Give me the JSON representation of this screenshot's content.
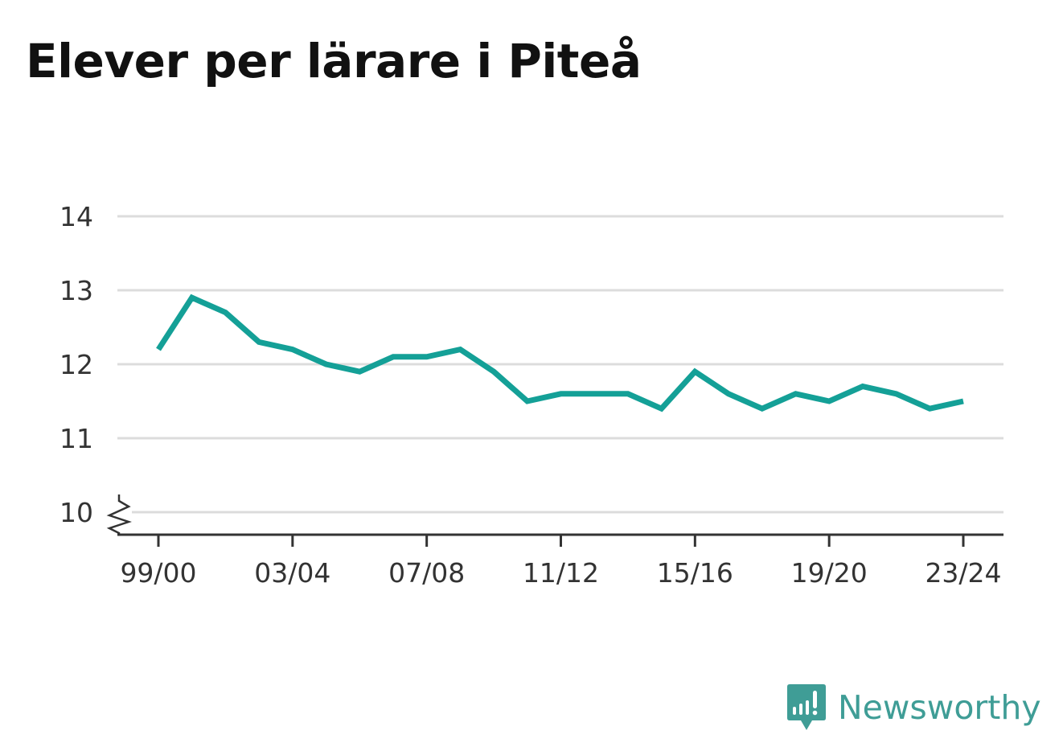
{
  "title": "Elever per lärare i Piteå",
  "brand": {
    "name": "Newsworthy",
    "icon": "newsworthy-logo-icon",
    "color": "#3f9d96"
  },
  "chart_data": {
    "type": "line",
    "title": "Elever per lärare i Piteå",
    "xlabel": "",
    "ylabel": "",
    "x": [
      "99/00",
      "00/01",
      "01/02",
      "02/03",
      "03/04",
      "04/05",
      "05/06",
      "06/07",
      "07/08",
      "08/09",
      "09/10",
      "10/11",
      "11/12",
      "12/13",
      "13/14",
      "14/15",
      "15/16",
      "16/17",
      "17/18",
      "18/19",
      "19/20",
      "20/21",
      "21/22",
      "22/23",
      "23/24"
    ],
    "x_tick_labels": [
      "99/00",
      "03/04",
      "07/08",
      "11/12",
      "15/16",
      "19/20",
      "23/24"
    ],
    "series": [
      {
        "color": "#14a097",
        "values": [
          12.2,
          12.9,
          12.7,
          12.3,
          12.2,
          12.0,
          11.9,
          12.1,
          12.1,
          12.2,
          11.9,
          11.5,
          11.6,
          11.6,
          11.6,
          11.4,
          11.9,
          11.6,
          11.4,
          11.6,
          11.5,
          11.7,
          11.6,
          11.4,
          11.5
        ]
      }
    ],
    "y_ticks": [
      10,
      11,
      12,
      13,
      14
    ],
    "ylim": [
      10,
      14
    ],
    "y_axis_break": true,
    "grid": true,
    "legend": "none"
  }
}
